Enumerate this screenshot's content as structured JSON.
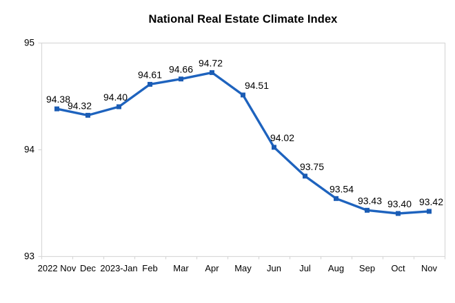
{
  "chart_data": {
    "type": "line",
    "title": "National Real Estate Climate Index",
    "categories": [
      "2022 Nov",
      "Dec",
      "2023-Jan",
      "Feb",
      "Mar",
      "Apr",
      "May",
      "Jun",
      "Jul",
      "Aug",
      "Sep",
      "Oct",
      "Nov"
    ],
    "values": [
      94.38,
      94.32,
      94.4,
      94.61,
      94.66,
      94.72,
      94.51,
      94.02,
      93.75,
      93.54,
      93.43,
      93.4,
      93.42
    ],
    "point_labels": [
      "94.38",
      "94.32",
      "94.40",
      "94.61",
      "94.66",
      "94.72",
      "94.51",
      "94.02",
      "93.75",
      "93.54",
      "93.43",
      "93.40",
      "93.42"
    ],
    "xlabel": "",
    "ylabel": "",
    "ylim": [
      93,
      95
    ],
    "yticks": [
      "93",
      "94",
      "95"
    ],
    "grid": false,
    "legend_position": "none",
    "marker_shape": "square",
    "colors": {
      "line": "#1E63BE",
      "marker": "#1B5CB4",
      "axis": "#D8D8D8",
      "text": "#000000",
      "background": "#FFFFFF"
    },
    "label_dx": [
      2,
      -12,
      -5,
      0,
      0,
      -2,
      20,
      12,
      10,
      8,
      4,
      2,
      3
    ],
    "label_dy": -9
  }
}
